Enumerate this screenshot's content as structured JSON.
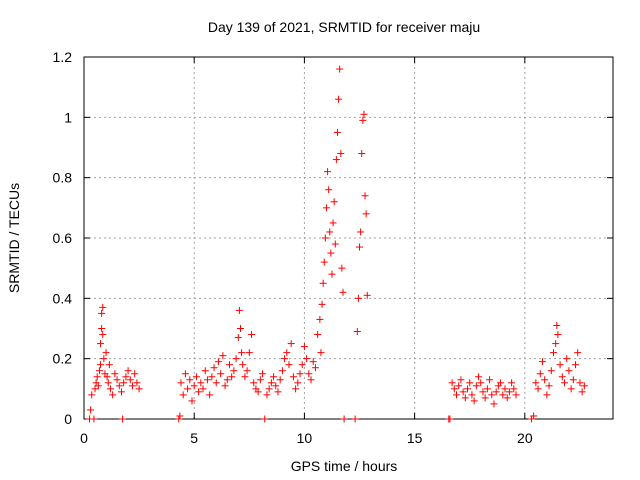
{
  "chart_data": {
    "type": "scatter",
    "title": "Day 139 of 2021, SRMTID for receiver maju",
    "xlabel": "GPS time / hours",
    "ylabel": "SRMTID / TECUs",
    "xlim": [
      0,
      24
    ],
    "ylim": [
      0,
      1.2
    ],
    "grid": true,
    "marker": "+",
    "color": "#ff0000",
    "xticks": [
      0,
      5,
      10,
      15,
      20
    ],
    "xtick_labels": [
      "0",
      "5",
      "10",
      "15",
      "20"
    ],
    "yticks": [
      0,
      0.2,
      0.4,
      0.6,
      0.8,
      1.0,
      1.2
    ],
    "ytick_labels": [
      "0",
      "0.2",
      "0.4",
      "0.6",
      "0.8",
      "1",
      "1.2"
    ],
    "series": [
      {
        "name": "SRMTID",
        "points": [
          [
            0.25,
            0.0
          ],
          [
            0.3,
            0.03
          ],
          [
            0.35,
            0.08
          ],
          [
            0.45,
            0.0
          ],
          [
            0.5,
            0.1
          ],
          [
            0.55,
            0.12
          ],
          [
            0.6,
            0.14
          ],
          [
            0.65,
            0.11
          ],
          [
            0.7,
            0.16
          ],
          [
            0.75,
            0.18
          ],
          [
            0.75,
            0.25
          ],
          [
            0.8,
            0.3
          ],
          [
            0.8,
            0.35
          ],
          [
            0.85,
            0.37
          ],
          [
            0.85,
            0.28
          ],
          [
            0.9,
            0.2
          ],
          [
            0.95,
            0.15
          ],
          [
            1.0,
            0.22
          ],
          [
            1.05,
            0.14
          ],
          [
            1.1,
            0.12
          ],
          [
            1.15,
            0.18
          ],
          [
            1.2,
            0.1
          ],
          [
            1.3,
            0.08
          ],
          [
            1.4,
            0.15
          ],
          [
            1.5,
            0.13
          ],
          [
            1.6,
            0.11
          ],
          [
            1.7,
            0.09
          ],
          [
            1.8,
            0.12
          ],
          [
            1.9,
            0.14
          ],
          [
            2.0,
            0.16
          ],
          [
            2.1,
            0.13
          ],
          [
            2.2,
            0.11
          ],
          [
            2.3,
            0.15
          ],
          [
            2.4,
            0.12
          ],
          [
            2.5,
            0.1
          ],
          [
            1.75,
            0.0
          ],
          [
            4.3,
            0.0
          ],
          [
            4.35,
            0.01
          ],
          [
            4.4,
            0.12
          ],
          [
            4.5,
            0.08
          ],
          [
            4.6,
            0.15
          ],
          [
            4.7,
            0.1
          ],
          [
            4.8,
            0.13
          ],
          [
            4.9,
            0.06
          ],
          [
            5.0,
            0.11
          ],
          [
            5.1,
            0.14
          ],
          [
            5.2,
            0.09
          ],
          [
            5.3,
            0.12
          ],
          [
            5.4,
            0.1
          ],
          [
            5.5,
            0.16
          ],
          [
            5.6,
            0.13
          ],
          [
            5.7,
            0.08
          ],
          [
            5.8,
            0.14
          ],
          [
            5.9,
            0.17
          ],
          [
            6.0,
            0.12
          ],
          [
            6.1,
            0.19
          ],
          [
            6.2,
            0.15
          ],
          [
            6.3,
            0.21
          ],
          [
            6.4,
            0.11
          ],
          [
            6.5,
            0.13
          ],
          [
            6.6,
            0.18
          ],
          [
            6.7,
            0.14
          ],
          [
            6.8,
            0.16
          ],
          [
            6.9,
            0.2
          ],
          [
            7.0,
            0.27
          ],
          [
            7.05,
            0.36
          ],
          [
            7.1,
            0.3
          ],
          [
            7.15,
            0.22
          ],
          [
            7.2,
            0.18
          ],
          [
            7.3,
            0.14
          ],
          [
            7.4,
            0.16
          ],
          [
            7.5,
            0.22
          ],
          [
            7.6,
            0.28
          ],
          [
            7.7,
            0.12
          ],
          [
            7.8,
            0.1
          ],
          [
            7.9,
            0.09
          ],
          [
            8.0,
            0.13
          ],
          [
            8.1,
            0.15
          ],
          [
            8.2,
            0.0
          ],
          [
            8.3,
            0.08
          ],
          [
            8.4,
            0.1
          ],
          [
            8.5,
            0.12
          ],
          [
            8.6,
            0.14
          ],
          [
            8.7,
            0.11
          ],
          [
            8.8,
            0.09
          ],
          [
            8.9,
            0.13
          ],
          [
            9.0,
            0.16
          ],
          [
            9.1,
            0.2
          ],
          [
            9.2,
            0.22
          ],
          [
            9.3,
            0.18
          ],
          [
            9.4,
            0.25
          ],
          [
            9.5,
            0.14
          ],
          [
            9.6,
            0.1
          ],
          [
            9.7,
            0.12
          ],
          [
            9.8,
            0.15
          ],
          [
            9.9,
            0.18
          ],
          [
            10.0,
            0.24
          ],
          [
            10.1,
            0.2
          ],
          [
            10.2,
            0.15
          ],
          [
            10.3,
            0.13
          ],
          [
            10.4,
            0.19
          ],
          [
            10.5,
            0.17
          ],
          [
            10.6,
            0.28
          ],
          [
            10.7,
            0.33
          ],
          [
            10.75,
            0.22
          ],
          [
            10.8,
            0.38
          ],
          [
            10.85,
            0.45
          ],
          [
            10.9,
            0.52
          ],
          [
            10.95,
            0.6
          ],
          [
            11.0,
            0.7
          ],
          [
            11.05,
            0.82
          ],
          [
            11.1,
            0.76
          ],
          [
            11.15,
            0.62
          ],
          [
            11.2,
            0.55
          ],
          [
            11.25,
            0.48
          ],
          [
            11.3,
            0.65
          ],
          [
            11.35,
            0.72
          ],
          [
            11.4,
            0.58
          ],
          [
            11.45,
            0.86
          ],
          [
            11.5,
            0.95
          ],
          [
            11.55,
            1.06
          ],
          [
            11.6,
            1.16
          ],
          [
            11.65,
            0.88
          ],
          [
            11.7,
            0.5
          ],
          [
            11.75,
            0.42
          ],
          [
            11.8,
            0.0
          ],
          [
            12.4,
            0.29
          ],
          [
            12.45,
            0.4
          ],
          [
            12.5,
            0.57
          ],
          [
            12.55,
            0.62
          ],
          [
            12.6,
            0.88
          ],
          [
            12.65,
            0.99
          ],
          [
            12.7,
            1.01
          ],
          [
            12.75,
            0.74
          ],
          [
            12.8,
            0.68
          ],
          [
            12.85,
            0.41
          ],
          [
            12.3,
            0.0
          ],
          [
            16.55,
            0.0
          ],
          [
            16.6,
            0.0
          ],
          [
            16.7,
            0.12
          ],
          [
            16.8,
            0.1
          ],
          [
            16.9,
            0.08
          ],
          [
            17.0,
            0.11
          ],
          [
            17.1,
            0.13
          ],
          [
            17.2,
            0.09
          ],
          [
            17.3,
            0.07
          ],
          [
            17.4,
            0.1
          ],
          [
            17.5,
            0.12
          ],
          [
            17.6,
            0.08
          ],
          [
            17.7,
            0.06
          ],
          [
            17.8,
            0.11
          ],
          [
            17.9,
            0.14
          ],
          [
            18.0,
            0.12
          ],
          [
            18.1,
            0.09
          ],
          [
            18.2,
            0.07
          ],
          [
            18.3,
            0.1
          ],
          [
            18.4,
            0.13
          ],
          [
            18.5,
            0.08
          ],
          [
            18.6,
            0.05
          ],
          [
            18.7,
            0.09
          ],
          [
            18.8,
            0.11
          ],
          [
            18.9,
            0.12
          ],
          [
            19.0,
            0.08
          ],
          [
            19.1,
            0.1
          ],
          [
            19.2,
            0.07
          ],
          [
            19.3,
            0.09
          ],
          [
            19.4,
            0.12
          ],
          [
            19.5,
            0.1
          ],
          [
            19.6,
            0.08
          ],
          [
            20.3,
            0.0
          ],
          [
            20.4,
            0.01
          ],
          [
            20.5,
            0.12
          ],
          [
            20.6,
            0.1
          ],
          [
            20.7,
            0.15
          ],
          [
            20.8,
            0.19
          ],
          [
            20.9,
            0.13
          ],
          [
            21.0,
            0.08
          ],
          [
            21.1,
            0.11
          ],
          [
            21.2,
            0.16
          ],
          [
            21.3,
            0.22
          ],
          [
            21.4,
            0.25
          ],
          [
            21.45,
            0.31
          ],
          [
            21.5,
            0.28
          ],
          [
            21.6,
            0.18
          ],
          [
            21.7,
            0.14
          ],
          [
            21.8,
            0.12
          ],
          [
            21.9,
            0.2
          ],
          [
            22.0,
            0.16
          ],
          [
            22.1,
            0.1
          ],
          [
            22.2,
            0.13
          ],
          [
            22.3,
            0.18
          ],
          [
            22.4,
            0.22
          ],
          [
            22.5,
            0.12
          ],
          [
            22.6,
            0.09
          ],
          [
            22.7,
            0.11
          ]
        ]
      }
    ]
  }
}
